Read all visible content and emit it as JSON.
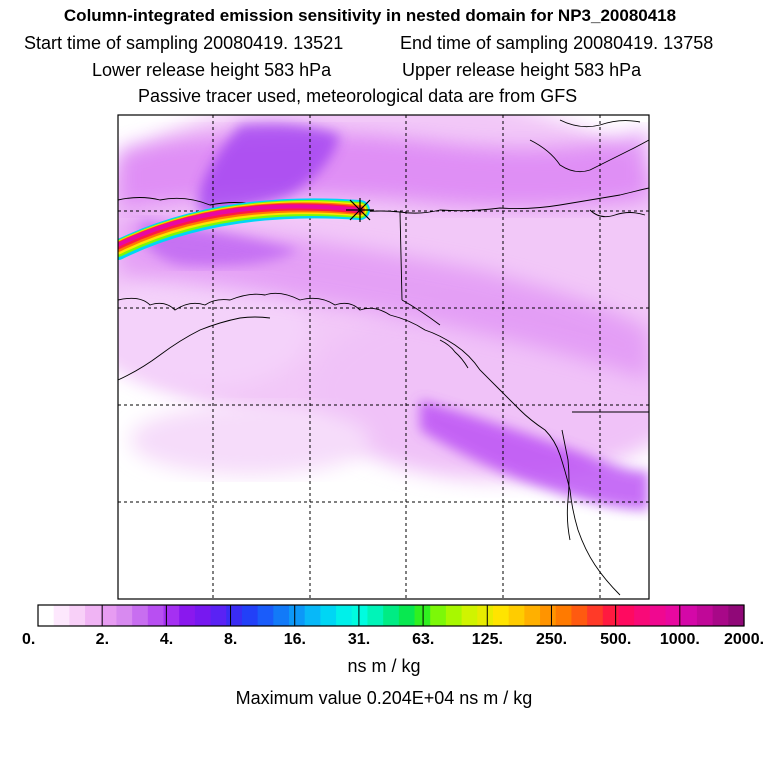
{
  "header": {
    "title": "Column-integrated emission sensitivity in nested domain for NP3_20080418",
    "start_label": "Start time of sampling 20080419. 13521",
    "end_label": "End time of sampling 20080419. 13758",
    "lower_label": "Lower release height  583 hPa",
    "upper_label": "Upper release height  583 hPa",
    "note": "Passive tracer used, meteorological data are from GFS"
  },
  "colorbar": {
    "tick_labels": [
      "0.",
      "2.",
      "4.",
      "8.",
      "16.",
      "31.",
      "63.",
      "125.",
      "250.",
      "500.",
      "1000.",
      "2000."
    ],
    "colors": [
      "#ffffff",
      "#fde8fd",
      "#f8d0f8",
      "#f0b4f4",
      "#e79cf2",
      "#d88af0",
      "#c86ef0",
      "#b84ff2",
      "#a530f2",
      "#8a18ee",
      "#7718f0",
      "#5a22f4",
      "#3a2cf4",
      "#2240f8",
      "#1a5cfa",
      "#127af8",
      "#0c98f8",
      "#08b8f8",
      "#00d6f4",
      "#00f0ea",
      "#00fce0",
      "#00f4b8",
      "#00ec84",
      "#08e850",
      "#30f020",
      "#7cf808",
      "#a8f800",
      "#d0f400",
      "#e8ec00",
      "#ffe400",
      "#ffcc00",
      "#ffb000",
      "#ff9400",
      "#ff7a00",
      "#ff5a10",
      "#ff3a28",
      "#ff1a40",
      "#ff0a60",
      "#f80a78",
      "#f00890",
      "#e808a0",
      "#d408a8",
      "#c00898",
      "#a80888",
      "#900878"
    ],
    "units": "ns m / kg",
    "maximum_label": "Maximum value  0.204E+04 ns m / kg"
  },
  "map": {
    "receptor_icon": "asterisk-marker-icon",
    "plume_color": "#b400ff"
  }
}
